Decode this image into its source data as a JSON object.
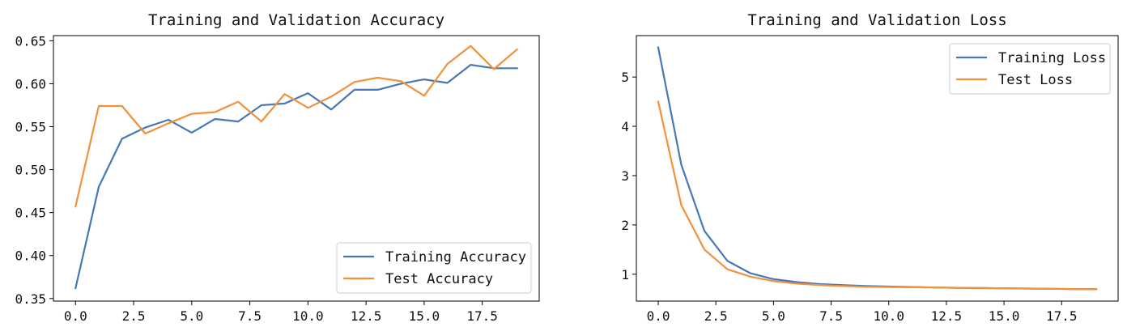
{
  "chart_data": [
    {
      "type": "line",
      "title": "Training and Validation Accuracy",
      "xlabel": "",
      "ylabel": "",
      "xlim": [
        -0.95,
        19.95
      ],
      "ylim": [
        0.347,
        0.656
      ],
      "x_ticks": [
        0.0,
        2.5,
        5.0,
        7.5,
        10.0,
        12.5,
        15.0,
        17.5
      ],
      "x_tick_labels": [
        "0.0",
        "2.5",
        "5.0",
        "7.5",
        "10.0",
        "12.5",
        "15.0",
        "17.5"
      ],
      "y_ticks": [
        0.35,
        0.4,
        0.45,
        0.5,
        0.55,
        0.6,
        0.65
      ],
      "y_tick_labels": [
        "0.35",
        "0.40",
        "0.45",
        "0.50",
        "0.55",
        "0.60",
        "0.65"
      ],
      "grid": false,
      "legend_position": "lower-right",
      "x": [
        0,
        1,
        2,
        3,
        4,
        5,
        6,
        7,
        8,
        9,
        10,
        11,
        12,
        13,
        14,
        15,
        16,
        17,
        18,
        19
      ],
      "series": [
        {
          "name": "Training Accuracy",
          "color": "#4878b4",
          "values": [
            0.362,
            0.48,
            0.536,
            0.549,
            0.558,
            0.543,
            0.559,
            0.556,
            0.575,
            0.577,
            0.589,
            0.57,
            0.593,
            0.593,
            0.6,
            0.605,
            0.601,
            0.622,
            0.618,
            0.618
          ]
        },
        {
          "name": "Test Accuracy",
          "color": "#f0913c",
          "values": [
            0.457,
            0.574,
            0.574,
            0.542,
            0.554,
            0.565,
            0.567,
            0.579,
            0.556,
            0.588,
            0.572,
            0.585,
            0.602,
            0.607,
            0.603,
            0.586,
            0.623,
            0.644,
            0.617,
            0.64
          ]
        }
      ]
    },
    {
      "type": "line",
      "title": "Training and Validation Loss",
      "xlabel": "",
      "ylabel": "",
      "xlim": [
        -0.95,
        19.95
      ],
      "ylim": [
        0.455,
        5.84
      ],
      "x_ticks": [
        0.0,
        2.5,
        5.0,
        7.5,
        10.0,
        12.5,
        15.0,
        17.5
      ],
      "x_tick_labels": [
        "0.0",
        "2.5",
        "5.0",
        "7.5",
        "10.0",
        "12.5",
        "15.0",
        "17.5"
      ],
      "y_ticks": [
        1,
        2,
        3,
        4,
        5
      ],
      "y_tick_labels": [
        "1",
        "2",
        "3",
        "4",
        "5"
      ],
      "grid": false,
      "legend_position": "upper-right",
      "x": [
        0,
        1,
        2,
        3,
        4,
        5,
        6,
        7,
        8,
        9,
        10,
        11,
        12,
        13,
        14,
        15,
        16,
        17,
        18,
        19
      ],
      "series": [
        {
          "name": "Training Loss",
          "color": "#4878b4",
          "values": [
            5.6,
            3.22,
            1.88,
            1.27,
            1.02,
            0.9,
            0.84,
            0.8,
            0.78,
            0.76,
            0.75,
            0.74,
            0.73,
            0.725,
            0.72,
            0.715,
            0.71,
            0.705,
            0.7,
            0.7
          ]
        },
        {
          "name": "Test Loss",
          "color": "#f0913c",
          "values": [
            4.5,
            2.4,
            1.5,
            1.1,
            0.95,
            0.86,
            0.81,
            0.78,
            0.76,
            0.745,
            0.74,
            0.735,
            0.73,
            0.725,
            0.72,
            0.715,
            0.71,
            0.705,
            0.7,
            0.695
          ]
        }
      ]
    }
  ]
}
